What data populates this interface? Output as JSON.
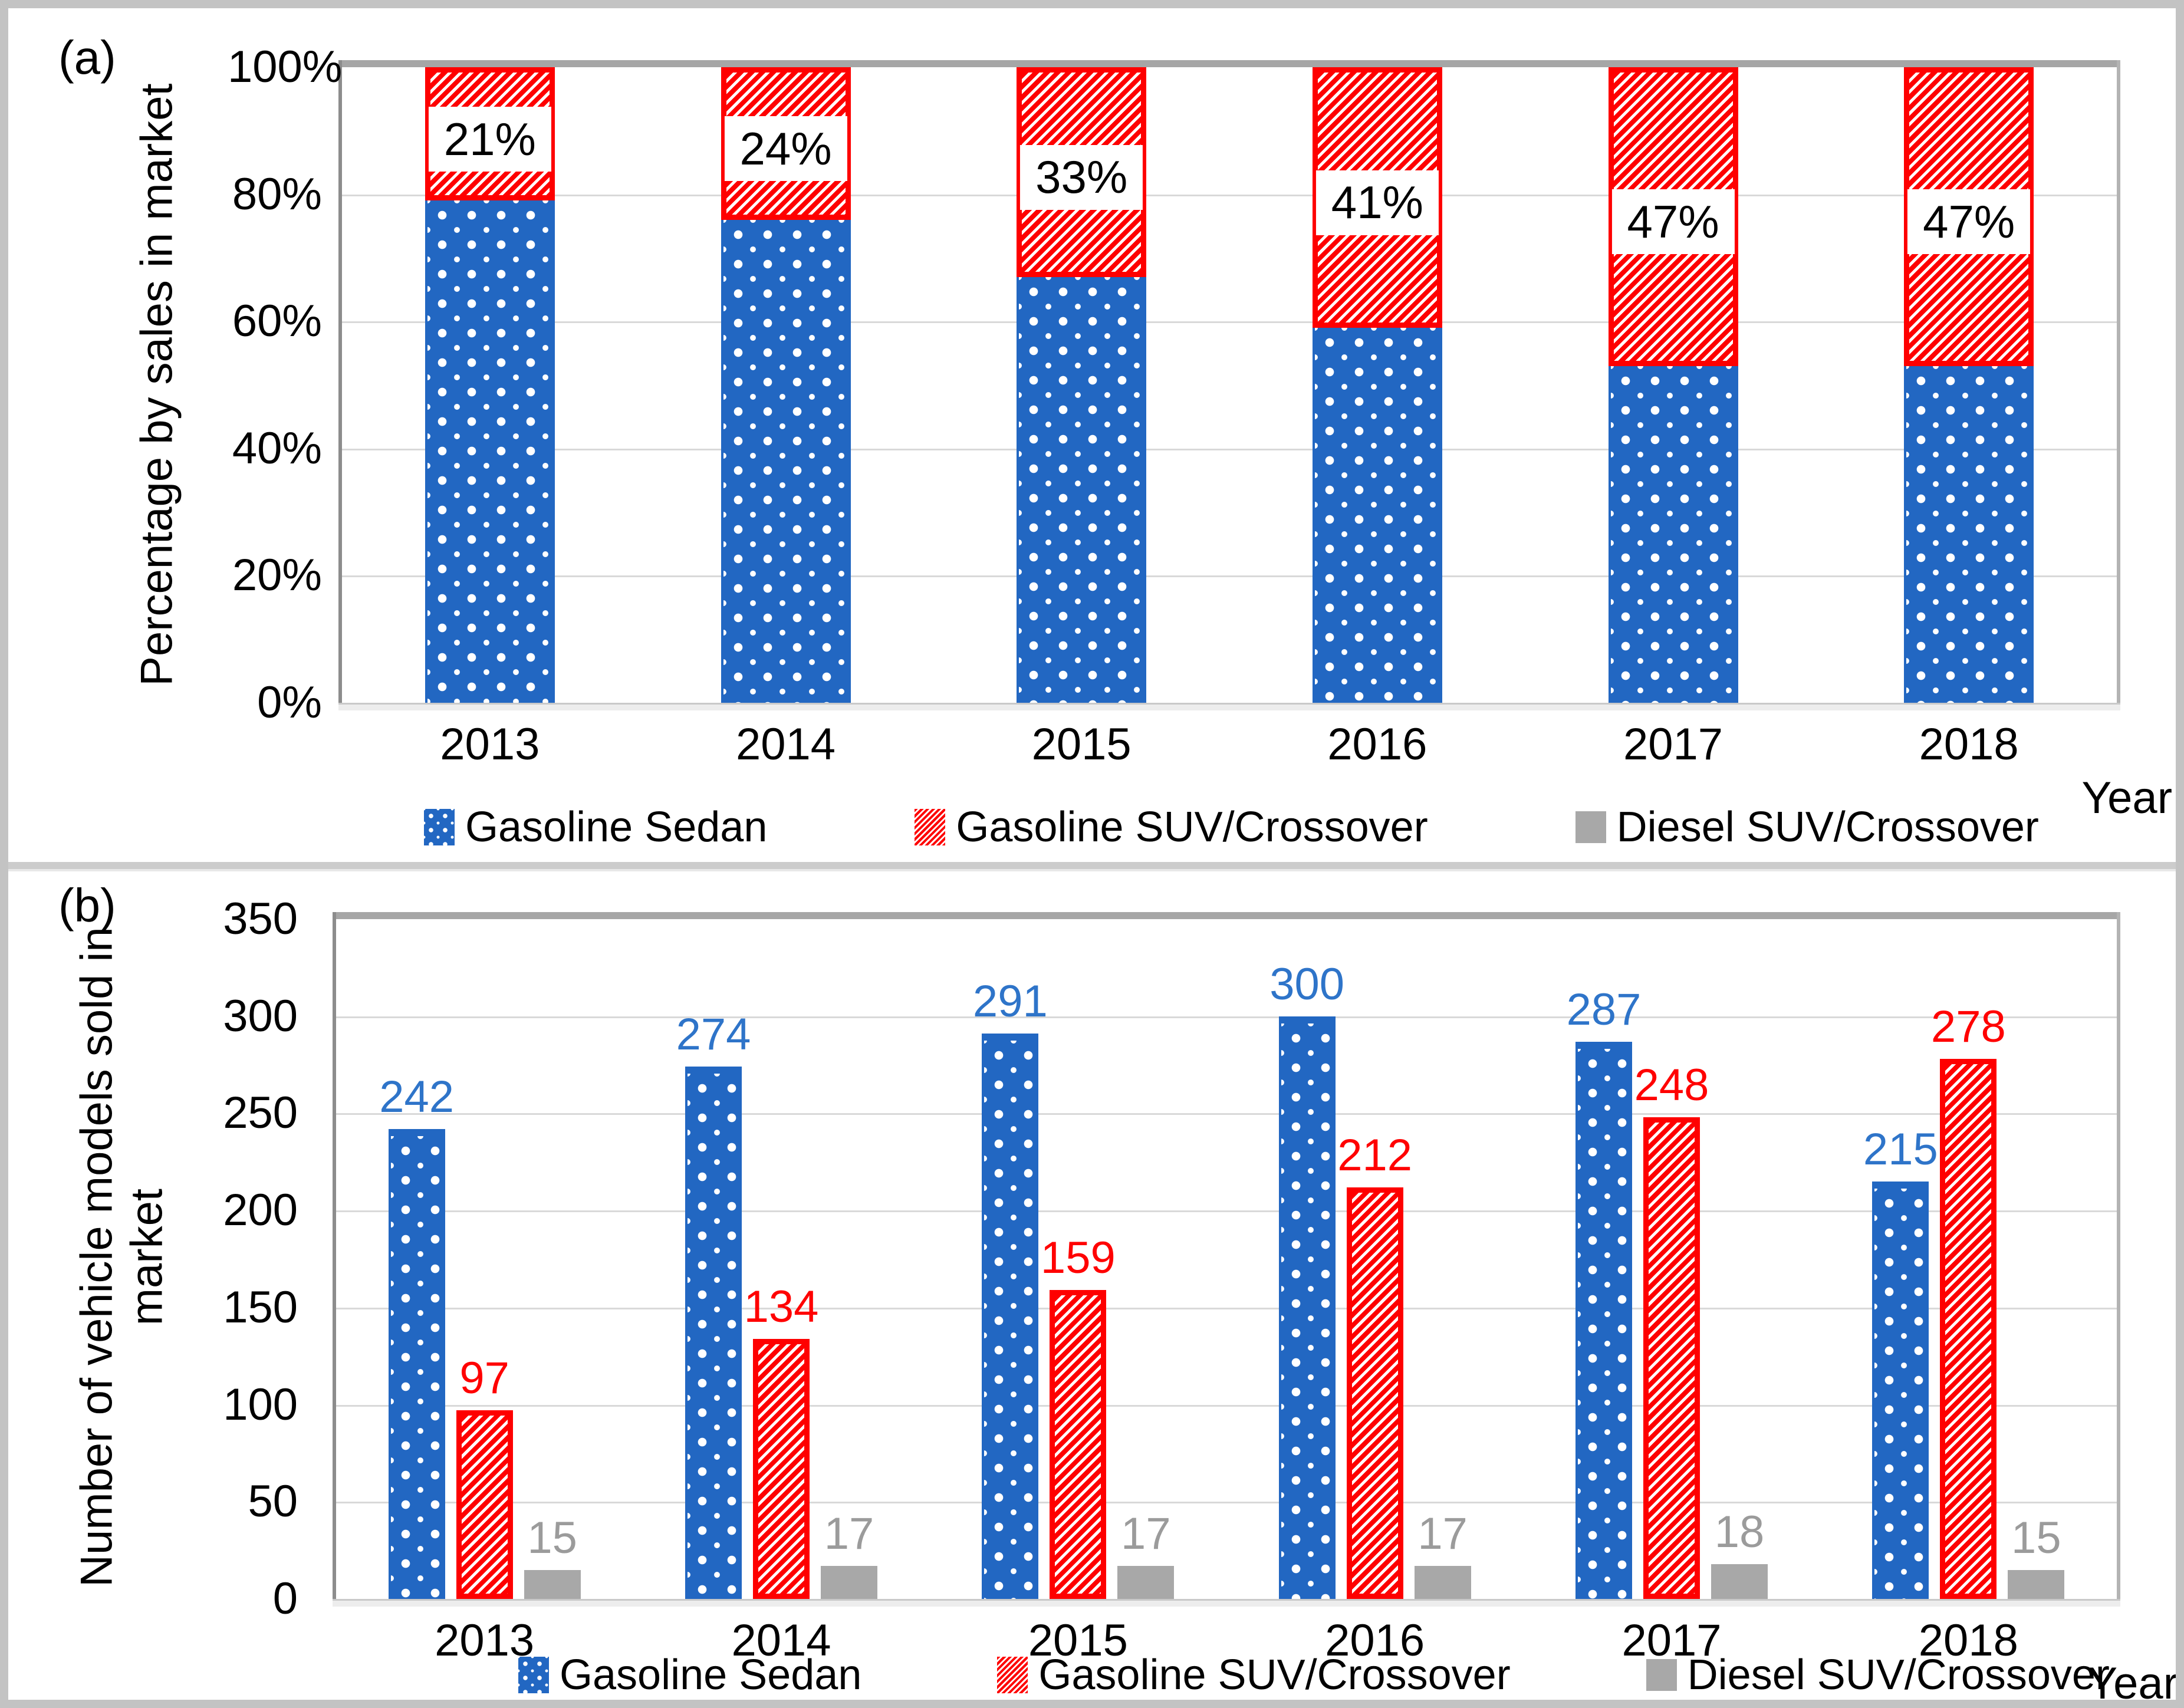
{
  "figure": {
    "panels": [
      {
        "id": "a",
        "corner_label": "(a)",
        "y_axis": {
          "title": "Percentage by sales in market",
          "ticks": [
            "0%",
            "20%",
            "40%",
            "60%",
            "80%",
            "100%"
          ]
        },
        "x_axis": {
          "title": "Year",
          "categories": [
            "2013",
            "2014",
            "2015",
            "2016",
            "2017",
            "2018"
          ]
        },
        "legend": [
          "Gasoline Sedan",
          "Gasoline SUV/Crossover",
          "Diesel SUV/Crossover"
        ]
      },
      {
        "id": "b",
        "corner_label": "(b)",
        "y_axis": {
          "title": "Number of vehicle models sold in market",
          "title_lines": [
            "Number of vehicle models sold in",
            "market"
          ],
          "ticks": [
            "0",
            "50",
            "100",
            "150",
            "200",
            "250",
            "300",
            "350"
          ]
        },
        "x_axis": {
          "title": "Year",
          "categories": [
            "2013",
            "2014",
            "2015",
            "2016",
            "2017",
            "2018"
          ]
        },
        "legend": [
          "Gasoline Sedan",
          "Gasoline SUV/Crossover",
          "Diesel SUV/Crossover"
        ]
      }
    ]
  },
  "chart_data": [
    {
      "type": "bar",
      "subtype": "100%-stacked-column",
      "panel": "a",
      "title": "",
      "categories": [
        "2013",
        "2014",
        "2015",
        "2016",
        "2017",
        "2018"
      ],
      "series": [
        {
          "name": "Gasoline Sedan",
          "pattern": "white-dots-on-blue",
          "values_pct": [
            79,
            76,
            67,
            59,
            53,
            53
          ]
        },
        {
          "name": "Gasoline SUV/Crossover",
          "pattern": "white-diagonal-hatch-on-red",
          "values_pct": [
            21,
            24,
            33,
            41,
            47,
            47
          ],
          "data_labels": [
            "21%",
            "24%",
            "33%",
            "41%",
            "47%",
            "47%"
          ]
        },
        {
          "name": "Diesel SUV/Crossover",
          "pattern": "solid-gray",
          "values_pct": [
            0,
            0,
            0,
            0,
            0,
            0
          ]
        }
      ],
      "ylabel": "Percentage by sales in market",
      "xlabel": "Year",
      "ylim": [
        0,
        100
      ],
      "yticks": [
        "0%",
        "20%",
        "40%",
        "60%",
        "80%",
        "100%"
      ],
      "grid": true,
      "legend_position": "bottom"
    },
    {
      "type": "bar",
      "subtype": "grouped-column",
      "panel": "b",
      "title": "",
      "categories": [
        "2013",
        "2014",
        "2015",
        "2016",
        "2017",
        "2018"
      ],
      "series": [
        {
          "name": "Gasoline Sedan",
          "pattern": "white-dots-on-blue",
          "values": [
            242,
            274,
            291,
            300,
            287,
            215
          ]
        },
        {
          "name": "Gasoline SUV/Crossover",
          "pattern": "white-diagonal-hatch-on-red",
          "values": [
            97,
            134,
            159,
            212,
            248,
            278
          ]
        },
        {
          "name": "Diesel SUV/Crossover",
          "pattern": "solid-gray",
          "values": [
            15,
            17,
            17,
            17,
            18,
            15
          ]
        }
      ],
      "ylabel": "Number of vehicle models sold in market",
      "xlabel": "Year",
      "ylim": [
        0,
        350
      ],
      "yticks": [
        0,
        50,
        100,
        150,
        200,
        250,
        300,
        350
      ],
      "grid": true,
      "legend_position": "bottom"
    }
  ],
  "colors": {
    "sedan_blue": "#2267C2",
    "suv_red": "#FE0000",
    "diesel_gray": "#A8A8A8",
    "label_blue": "#2E74C9",
    "label_red": "#FF0000",
    "label_gray": "#9B9B9B",
    "gridline": "#D9D9D9",
    "axis_line": "#8C8C8C",
    "axis_band": "#A6A6A6",
    "outer_frame": "#C3C3C3"
  }
}
